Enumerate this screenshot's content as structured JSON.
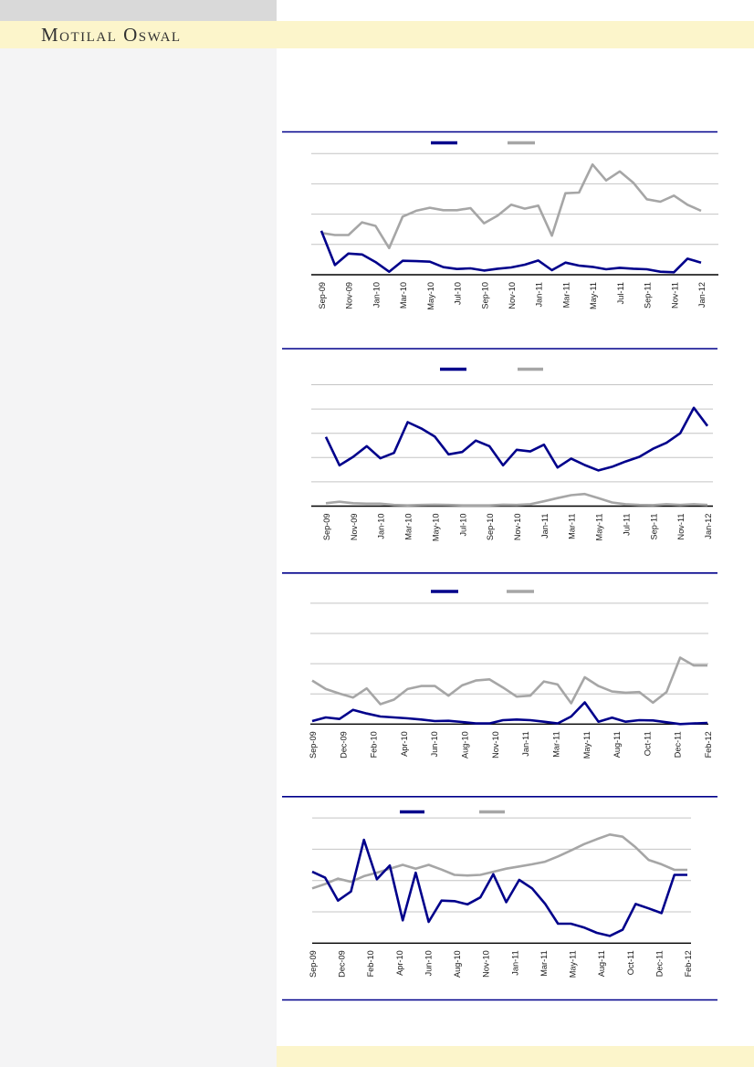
{
  "brand": {
    "name": "Motilal Oswal"
  },
  "colors": {
    "navy": "#00008B",
    "gray": "#A6A6A6",
    "separator": "#00008B",
    "gridline": "#C4C4C4",
    "axis": "#000000",
    "band_yellow": "#FCF5CB",
    "panel_gray": "#F4F4F5",
    "top_bar_gray": "#D9D9D9"
  },
  "chart_data": [
    {
      "type": "line",
      "title": "",
      "legend_position": "top-center",
      "gridlines": true,
      "ylim": [
        0,
        4
      ],
      "x_labels": [
        "Sep-09",
        "Nov-09",
        "Jan-10",
        "Mar-10",
        "May-10",
        "Jul-10",
        "Sep-10",
        "Nov-10",
        "Jan-11",
        "Mar-11",
        "May-11",
        "Jul-11",
        "Sep-11",
        "Nov-11",
        "Jan-12"
      ],
      "series": [
        {
          "label": "",
          "color": "#00008B",
          "values": [
            1.45,
            0.32,
            0.7,
            0.67,
            0.42,
            0.1,
            0.46,
            0.45,
            0.43,
            0.25,
            0.19,
            0.21,
            0.14,
            0.2,
            0.24,
            0.33,
            0.47,
            0.15,
            0.4,
            0.3,
            0.26,
            0.18,
            0.23,
            0.2,
            0.18,
            0.1,
            0.08,
            0.53,
            0.4
          ]
        },
        {
          "label": "",
          "color": "#A6A6A6",
          "values": [
            1.38,
            1.31,
            1.31,
            1.73,
            1.61,
            0.88,
            1.92,
            2.11,
            2.21,
            2.13,
            2.13,
            2.2,
            1.7,
            1.95,
            2.31,
            2.18,
            2.28,
            1.29,
            2.69,
            2.71,
            3.64,
            3.11,
            3.41,
            3.04,
            2.49,
            2.41,
            2.61,
            2.31,
            2.11
          ]
        }
      ]
    },
    {
      "type": "line",
      "title": "",
      "legend_position": "top-center",
      "gridlines": true,
      "ylim": [
        0,
        5
      ],
      "x_labels": [
        "Sep-09",
        "Nov-09",
        "Jan-10",
        "Mar-10",
        "May-10",
        "Jul-10",
        "Sep-10",
        "Nov-10",
        "Jan-11",
        "Mar-11",
        "May-11",
        "Jul-11",
        "Sep-11",
        "Nov-11",
        "Jan-12"
      ],
      "series": [
        {
          "label": "",
          "color": "#00008B",
          "values": [
            2.85,
            1.68,
            2.03,
            2.47,
            1.97,
            2.19,
            3.46,
            3.2,
            2.86,
            2.13,
            2.23,
            2.7,
            2.47,
            1.68,
            2.32,
            2.25,
            2.53,
            1.59,
            1.96,
            1.69,
            1.47,
            1.62,
            1.84,
            2.03,
            2.36,
            2.61,
            3.0,
            4.05,
            3.3
          ]
        },
        {
          "label": "",
          "color": "#A6A6A6",
          "values": [
            0.12,
            0.18,
            0.12,
            0.1,
            0.1,
            0.05,
            0.03,
            0.05,
            0.06,
            0.05,
            0.03,
            0.03,
            0.03,
            0.06,
            0.05,
            0.08,
            0.2,
            0.33,
            0.45,
            0.5,
            0.33,
            0.15,
            0.08,
            0.05,
            0.04,
            0.08,
            0.05,
            0.08,
            0.05
          ]
        }
      ]
    },
    {
      "type": "line",
      "title": "",
      "legend_position": "top-center",
      "gridlines": true,
      "ylim": [
        0,
        4
      ],
      "x_labels": [
        "Sep-09",
        "Dec-09",
        "Feb-10",
        "Apr-10",
        "Jun-10",
        "Aug-10",
        "Nov-10",
        "Jan-11",
        "Mar-11",
        "May-11",
        "Aug-11",
        "Oct-11",
        "Dec-11",
        "Feb-12"
      ],
      "series": [
        {
          "label": "",
          "color": "#00008B",
          "values": [
            0.1,
            0.22,
            0.17,
            0.47,
            0.35,
            0.25,
            0.22,
            0.19,
            0.15,
            0.1,
            0.11,
            0.07,
            0.02,
            0.02,
            0.13,
            0.15,
            0.13,
            0.08,
            0.02,
            0.25,
            0.72,
            0.08,
            0.21,
            0.08,
            0.13,
            0.12,
            0.06,
            0.0,
            0.02,
            0.04
          ]
        },
        {
          "label": "",
          "color": "#A6A6A6",
          "values": [
            1.44,
            1.16,
            1.01,
            0.88,
            1.18,
            0.66,
            0.81,
            1.16,
            1.26,
            1.26,
            0.94,
            1.28,
            1.44,
            1.48,
            1.21,
            0.91,
            0.94,
            1.41,
            1.31,
            0.69,
            1.55,
            1.26,
            1.08,
            1.04,
            1.06,
            0.71,
            1.06,
            2.2,
            1.94,
            1.94
          ]
        }
      ]
    },
    {
      "type": "line",
      "title": "",
      "legend_position": "top-center",
      "gridlines": true,
      "ylim": [
        0,
        4
      ],
      "x_labels": [
        "Sep-09",
        "Dec-09",
        "Feb-10",
        "Apr-10",
        "Jun-10",
        "Aug-10",
        "Nov-10",
        "Jan-11",
        "Mar-11",
        "May-11",
        "Aug-11",
        "Oct-11",
        "Dec-11",
        "Feb-12"
      ],
      "series": [
        {
          "label": "",
          "color": "#00008B",
          "values": [
            2.28,
            2.09,
            1.36,
            1.65,
            3.3,
            2.04,
            2.48,
            0.73,
            2.25,
            0.68,
            1.36,
            1.34,
            1.24,
            1.46,
            2.2,
            1.31,
            2.02,
            1.75,
            1.26,
            0.62,
            0.62,
            0.5,
            0.33,
            0.23,
            0.43,
            1.25,
            1.11,
            0.96,
            2.18,
            2.18
          ]
        },
        {
          "label": "",
          "color": "#A6A6A6",
          "values": [
            1.75,
            1.89,
            2.06,
            1.96,
            2.14,
            2.25,
            2.38,
            2.5,
            2.38,
            2.5,
            2.35,
            2.18,
            2.16,
            2.18,
            2.28,
            2.38,
            2.45,
            2.52,
            2.6,
            2.77,
            2.96,
            3.16,
            3.32,
            3.47,
            3.4,
            3.06,
            2.66,
            2.52,
            2.34,
            2.34
          ]
        }
      ]
    }
  ]
}
